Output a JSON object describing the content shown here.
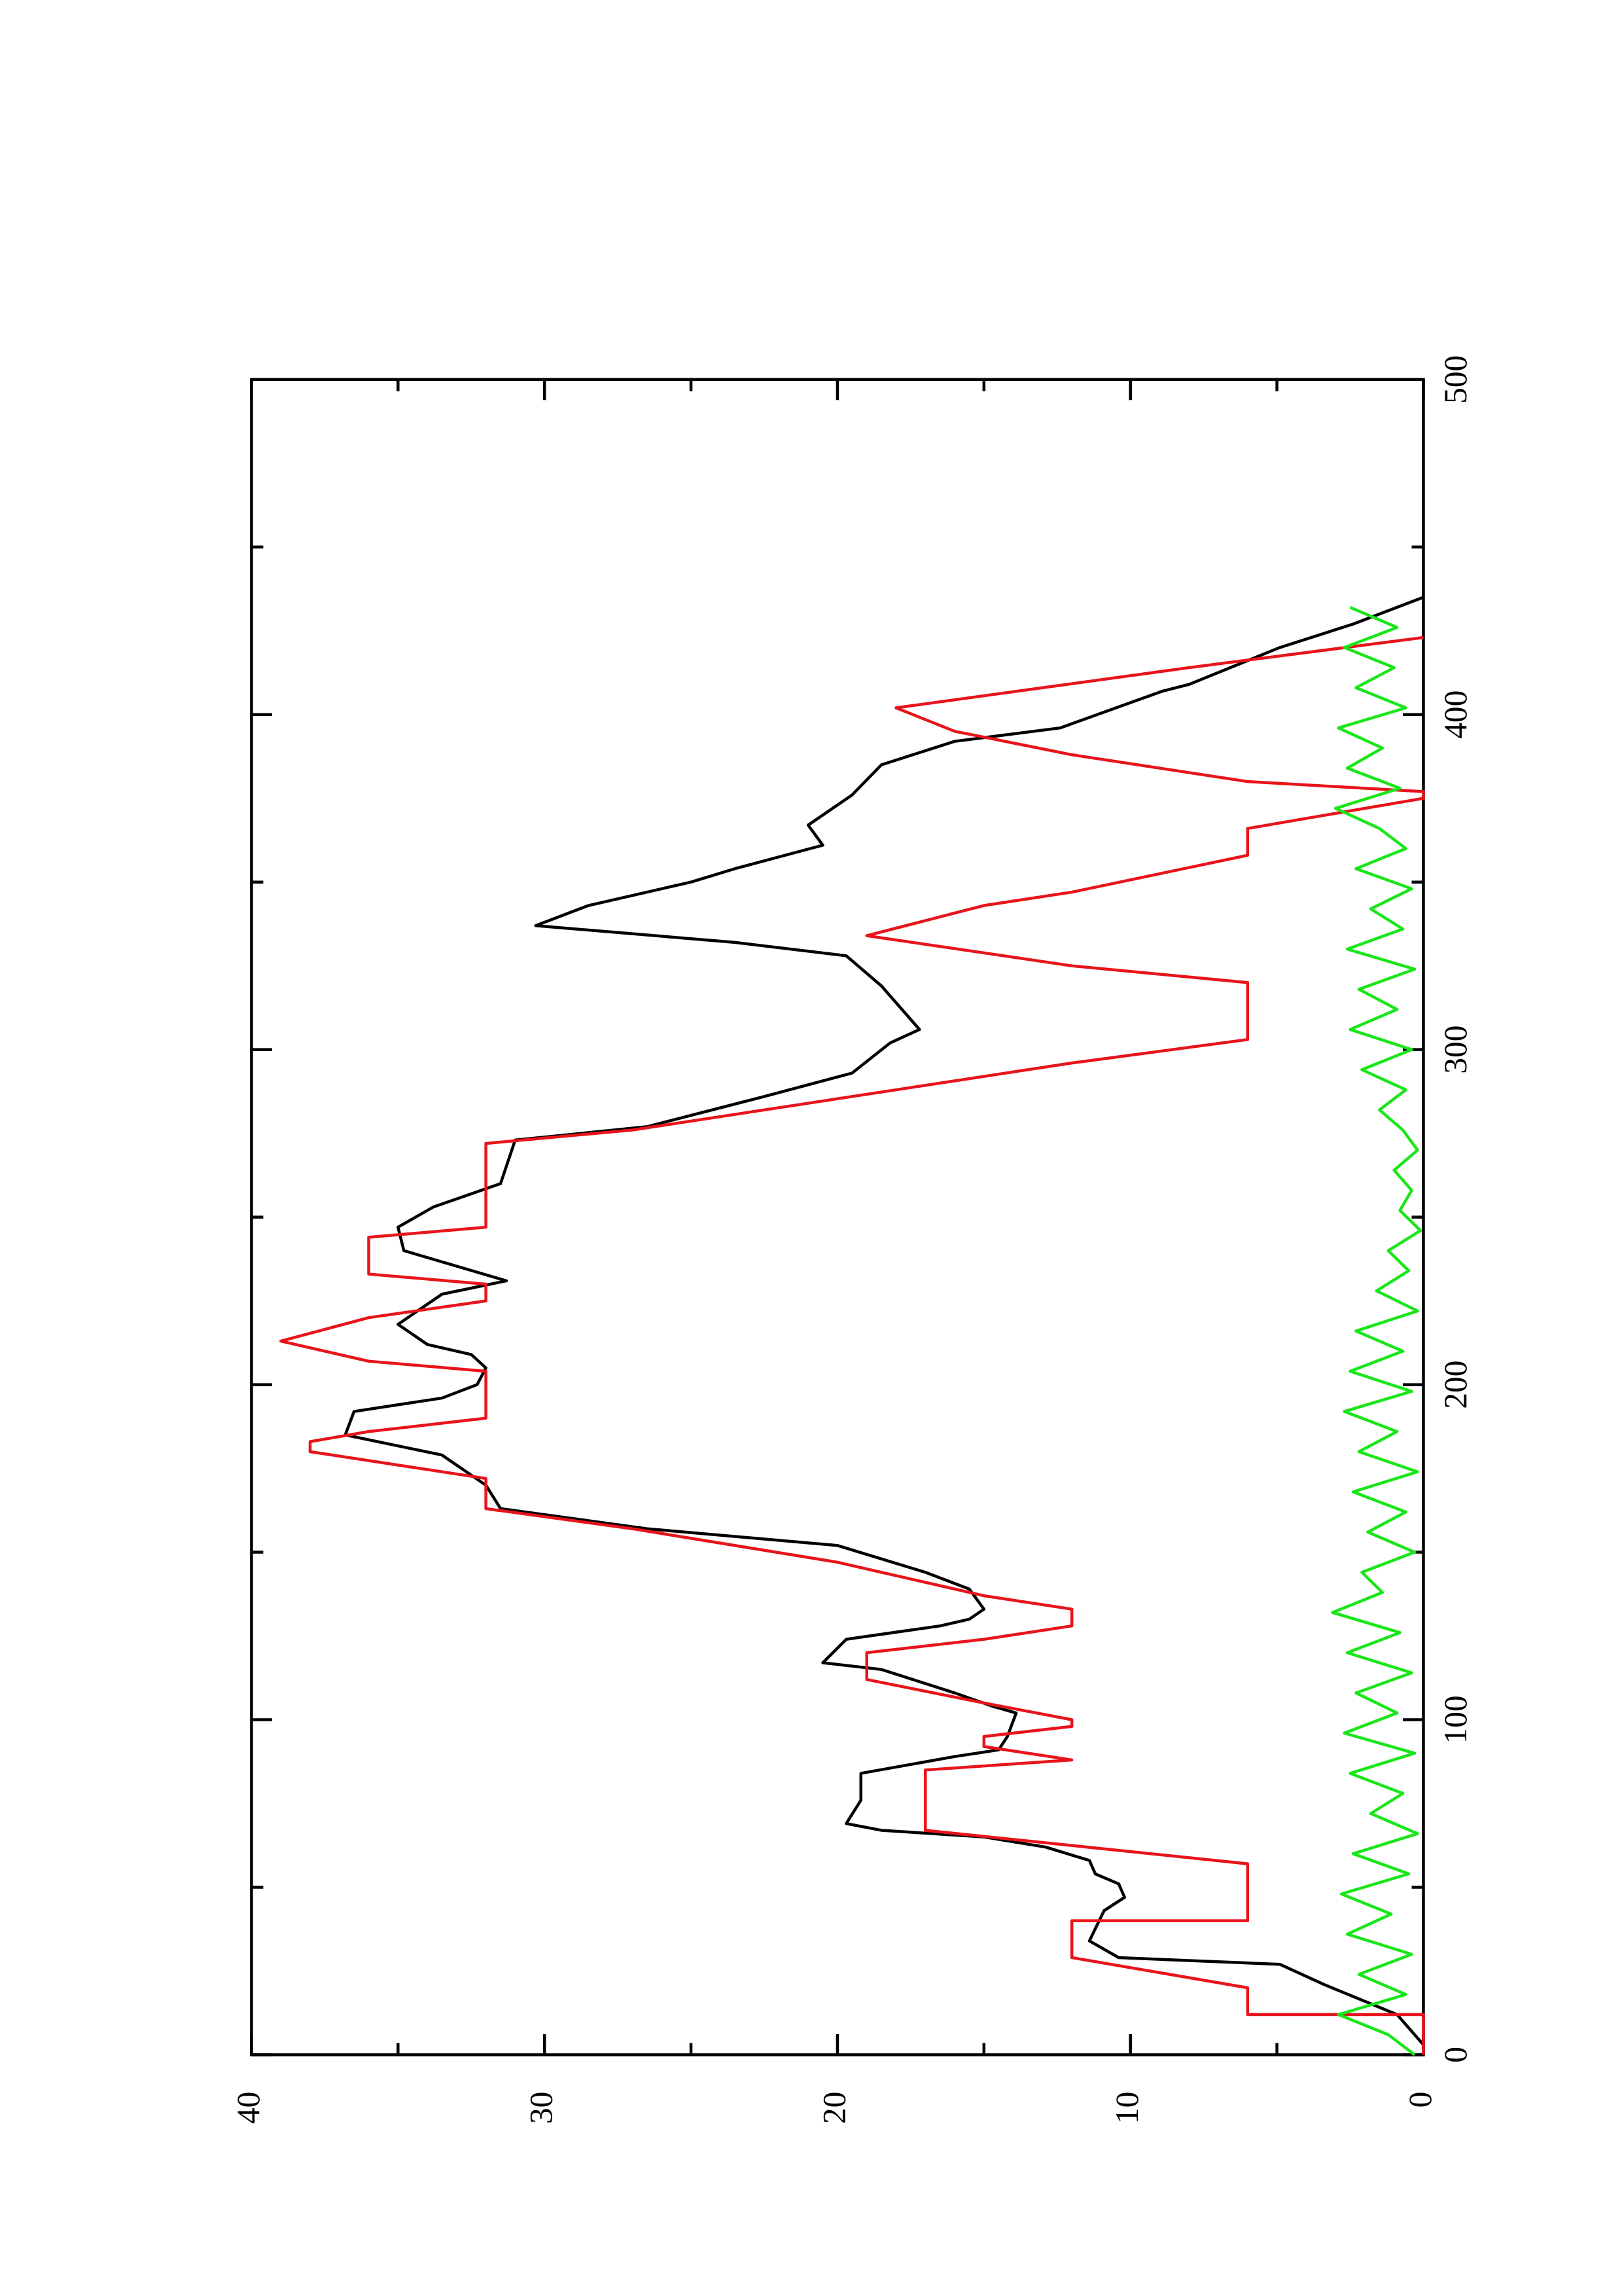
{
  "chart_data": {
    "type": "line",
    "xlim": [
      0,
      500
    ],
    "xticks": [
      0,
      100,
      200,
      300,
      400,
      500
    ],
    "xminorticks": [
      50,
      150,
      250,
      350,
      450
    ],
    "ylim": [
      0,
      40
    ],
    "yticks": [
      0,
      10,
      20,
      30,
      40
    ],
    "yminorticks": [
      5,
      15,
      25,
      35
    ],
    "series": [
      {
        "color": "#000000",
        "x": [
          3,
          12,
          21,
          27,
          29,
          34,
          43,
          47,
          51,
          54,
          58,
          62,
          65,
          67,
          69,
          76,
          84,
          89,
          91,
          95,
          102,
          104,
          108,
          115,
          117,
          124,
          128,
          130,
          133,
          139,
          144,
          152,
          157,
          163,
          170,
          179,
          185,
          192,
          196,
          200,
          205,
          209,
          212,
          218,
          227,
          231,
          240,
          247,
          253,
          260,
          273,
          277,
          286,
          293,
          302,
          306,
          319,
          328,
          332,
          337,
          343,
          350,
          354,
          361,
          367,
          376,
          385,
          392,
          396,
          407,
          409,
          420,
          427,
          435
        ],
        "values": [
          0,
          0.9,
          3.4,
          4.9,
          10.4,
          11.4,
          10.9,
          10.2,
          10.4,
          11.2,
          11.4,
          12.9,
          15,
          18.5,
          19.7,
          19.2,
          19.2,
          16,
          14.5,
          14.2,
          13.9,
          14.7,
          16,
          18.5,
          20.5,
          19.7,
          16.5,
          15.5,
          15,
          15.5,
          17,
          20,
          26.5,
          31.5,
          32,
          33.5,
          36.8,
          36.5,
          33.5,
          32.3,
          32,
          32.5,
          34,
          35,
          33.5,
          31.3,
          34.8,
          35,
          33.8,
          31.5,
          31,
          26.5,
          22.5,
          19.5,
          18.2,
          17.2,
          18.5,
          19.7,
          23.5,
          30.3,
          28.5,
          25,
          23.5,
          20.5,
          21,
          19.5,
          18.5,
          16,
          12.4,
          8.9,
          8,
          4.9,
          2.4,
          0
        ]
      },
      {
        "color": "#e8141b",
        "x": [
          0,
          12,
          12,
          20,
          29,
          40,
          40,
          57,
          67,
          85,
          88,
          92,
          95,
          98,
          100,
          105,
          112,
          120,
          124,
          128,
          133,
          137,
          147,
          157,
          163,
          172,
          180,
          183,
          186,
          190,
          204,
          207,
          213,
          220,
          225,
          230,
          233,
          244,
          247,
          272,
          276,
          292,
          296,
          303,
          320,
          325,
          334,
          343,
          347,
          358,
          366,
          375,
          377,
          380,
          388,
          395,
          402,
          408,
          414,
          423
        ],
        "values": [
          0,
          0,
          6,
          6,
          12,
          12,
          6,
          6,
          17,
          17,
          12,
          15,
          15,
          12,
          12,
          15,
          19,
          19,
          15,
          12,
          12,
          15,
          20,
          27,
          32,
          32,
          38,
          38,
          36,
          32,
          32,
          36,
          39,
          36,
          32,
          32,
          36,
          36,
          32,
          32,
          27,
          15,
          12,
          6,
          6,
          12,
          19,
          15,
          12,
          6,
          6,
          0,
          0,
          6,
          12,
          16,
          18,
          13,
          8,
          0
        ]
      },
      {
        "color": "#19e619",
        "x": [
          0,
          6,
          12,
          18,
          24,
          30,
          36,
          42,
          48,
          54,
          60,
          66,
          72,
          78,
          84,
          90,
          96,
          102,
          108,
          114,
          120,
          126,
          132,
          138,
          144,
          150,
          156,
          162,
          168,
          174,
          180,
          186,
          192,
          198,
          204,
          210,
          216,
          222,
          228,
          234,
          240,
          246,
          252,
          258,
          264,
          270,
          276,
          282,
          288,
          294,
          300,
          306,
          312,
          318,
          324,
          330,
          336,
          342,
          348,
          354,
          360,
          366,
          372,
          378,
          384,
          390,
          396,
          402,
          408,
          414,
          420,
          426,
          432
        ],
        "values": [
          0.3,
          1.2,
          2.9,
          0.6,
          2.2,
          0.4,
          2.6,
          1.1,
          2.8,
          0.5,
          2.4,
          0.2,
          1.8,
          0.7,
          2.5,
          0.3,
          2.7,
          0.9,
          2.3,
          0.4,
          2.6,
          0.8,
          3.1,
          1.4,
          2.1,
          0.3,
          1.9,
          0.6,
          2.4,
          0.2,
          2.2,
          0.9,
          2.7,
          0.4,
          2.5,
          0.7,
          2.3,
          0.2,
          1.6,
          0.5,
          1.2,
          0.1,
          0.8,
          0.4,
          1.0,
          0.2,
          0.7,
          1.5,
          0.6,
          2.1,
          0.4,
          2.5,
          0.9,
          2.2,
          0.3,
          2.6,
          0.7,
          1.8,
          0.4,
          2.3,
          0.6,
          1.5,
          3.0,
          0.8,
          2.6,
          1.4,
          2.9,
          0.6,
          2.3,
          1.0,
          2.7,
          0.9,
          2.5
        ]
      }
    ]
  }
}
